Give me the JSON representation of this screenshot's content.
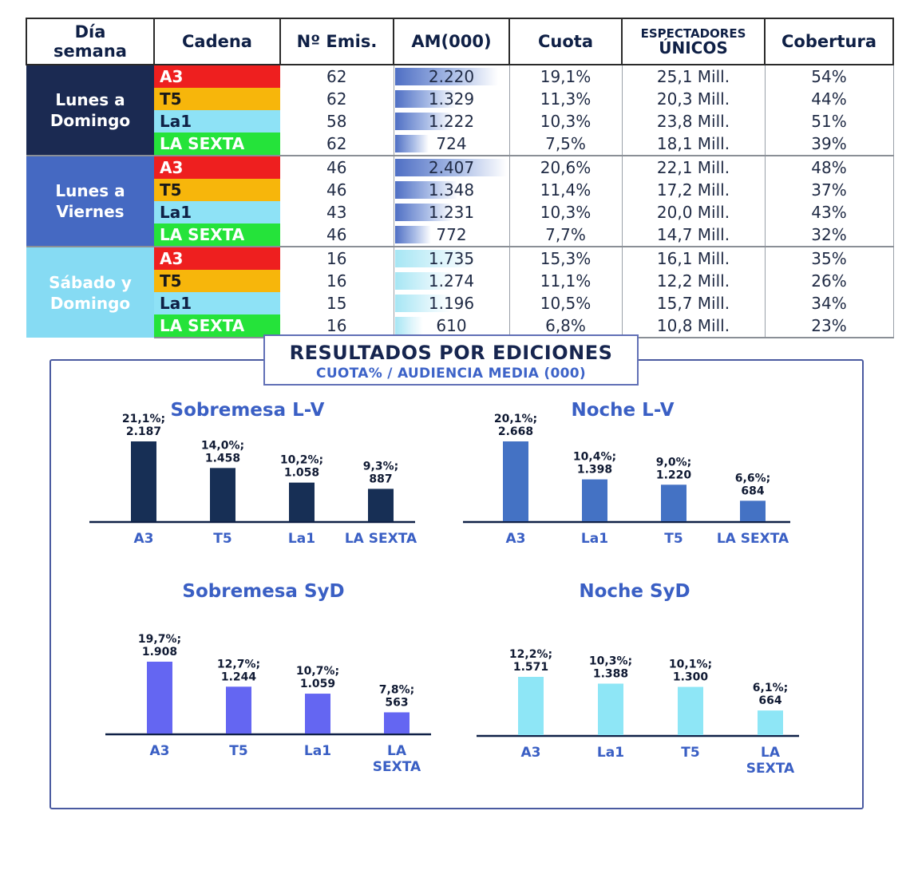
{
  "table": {
    "headers": {
      "dia": [
        "Día",
        "semana"
      ],
      "cadena": "Cadena",
      "emis": "Nº Emis.",
      "am": "AM(000)",
      "cuota": "Cuota",
      "espectadores": [
        "ESPECTADORES",
        "ÚNICOS"
      ],
      "cobertura": "Cobertura"
    },
    "groups": [
      {
        "label": [
          "Lunes a",
          "Domingo"
        ],
        "color": "#1b2a52",
        "rows": [
          {
            "cadena": "A3",
            "emis": "62",
            "am": "2.220",
            "cuota": "19,1%",
            "espectadores": "25,1 Mill.",
            "cobertura": "54%"
          },
          {
            "cadena": "T5",
            "emis": "62",
            "am": "1.329",
            "cuota": "11,3%",
            "espectadores": "20,3 Mill.",
            "cobertura": "44%"
          },
          {
            "cadena": "La1",
            "emis": "58",
            "am": "1.222",
            "cuota": "10,3%",
            "espectadores": "23,8 Mill.",
            "cobertura": "51%"
          },
          {
            "cadena": "LA SEXTA",
            "emis": "62",
            "am": "724",
            "cuota": "7,5%",
            "espectadores": "18,1 Mill.",
            "cobertura": "39%"
          }
        ]
      },
      {
        "label": [
          "Lunes a",
          "Viernes"
        ],
        "color": "#4569c2",
        "rows": [
          {
            "cadena": "A3",
            "emis": "46",
            "am": "2.407",
            "cuota": "20,6%",
            "espectadores": "22,1 Mill.",
            "cobertura": "48%"
          },
          {
            "cadena": "T5",
            "emis": "46",
            "am": "1.348",
            "cuota": "11,4%",
            "espectadores": "17,2 Mill.",
            "cobertura": "37%"
          },
          {
            "cadena": "La1",
            "emis": "43",
            "am": "1.231",
            "cuota": "10,3%",
            "espectadores": "20,0 Mill.",
            "cobertura": "43%"
          },
          {
            "cadena": "LA SEXTA",
            "emis": "46",
            "am": "772",
            "cuota": "7,7%",
            "espectadores": "14,7 Mill.",
            "cobertura": "32%"
          }
        ]
      },
      {
        "label": [
          "Sábado y",
          "Domingo"
        ],
        "color": "#86dbf3",
        "rows": [
          {
            "cadena": "A3",
            "emis": "16",
            "am": "1.735",
            "cuota": "15,3%",
            "espectadores": "16,1 Mill.",
            "cobertura": "35%"
          },
          {
            "cadena": "T5",
            "emis": "16",
            "am": "1.274",
            "cuota": "11,1%",
            "espectadores": "12,2 Mill.",
            "cobertura": "26%"
          },
          {
            "cadena": "La1",
            "emis": "15",
            "am": "1.196",
            "cuota": "10,5%",
            "espectadores": "15,7 Mill.",
            "cobertura": "34%"
          },
          {
            "cadena": "LA SEXTA",
            "emis": "16",
            "am": "610",
            "cuota": "6,8%",
            "espectadores": "10,8 Mill.",
            "cobertura": "23%"
          }
        ]
      }
    ]
  },
  "panel": {
    "title": "RESULTADOS POR EDICIONES",
    "subtitle": "CUOTA% / AUDIENCIA MEDIA (000)"
  },
  "chart_data": [
    {
      "type": "bar",
      "title": "Sobremesa L-V",
      "color": "#172f55",
      "categories": [
        "A3",
        "T5",
        "La1",
        "LA SEXTA"
      ],
      "values": [
        2187,
        1458,
        1058,
        887
      ],
      "labels": [
        [
          "21,1%;",
          "2.187"
        ],
        [
          "14,0%;",
          "1.458"
        ],
        [
          "10,2%;",
          "1.058"
        ],
        [
          "9,3%;",
          "887"
        ]
      ]
    },
    {
      "type": "bar",
      "title": "Noche L-V",
      "color": "#4472c4",
      "categories": [
        "A3",
        "La1",
        "T5",
        "LA SEXTA"
      ],
      "values": [
        2668,
        1398,
        1220,
        684
      ],
      "labels": [
        [
          "20,1%;",
          "2.668"
        ],
        [
          "10,4%;",
          "1.398"
        ],
        [
          "9,0%;",
          "1.220"
        ],
        [
          "6,6%;",
          "684"
        ]
      ]
    },
    {
      "type": "bar",
      "title": "Sobremesa SyD",
      "color": "#6466f2",
      "categories": [
        "A3",
        "T5",
        "La1",
        "LA SEXTA"
      ],
      "values": [
        1908,
        1244,
        1059,
        563
      ],
      "labels": [
        [
          "19,7%;",
          "1.908"
        ],
        [
          "12,7%;",
          "1.244"
        ],
        [
          "10,7%;",
          "1.059"
        ],
        [
          "7,8%;",
          "563"
        ]
      ]
    },
    {
      "type": "bar",
      "title": "Noche SyD",
      "color": "#8ee6f6",
      "categories": [
        "A3",
        "La1",
        "T5",
        "LA SEXTA"
      ],
      "values": [
        1571,
        1388,
        1300,
        664
      ],
      "labels": [
        [
          "12,2%;",
          "1.571"
        ],
        [
          "10,3%;",
          "1.388"
        ],
        [
          "10,1%;",
          "1.300"
        ],
        [
          "6,1%;",
          "664"
        ]
      ]
    }
  ]
}
